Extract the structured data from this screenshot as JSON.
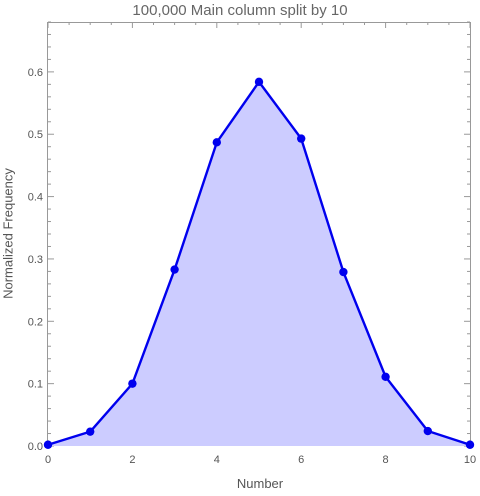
{
  "chart_data": {
    "type": "area",
    "title": "100,000 Main column split by 10",
    "xlabel": "Number",
    "ylabel": "Normalized Frequency",
    "xlim": [
      0,
      10
    ],
    "ylim": [
      0,
      0.68
    ],
    "x_ticks": [
      "0",
      "2",
      "4",
      "6",
      "8",
      "10"
    ],
    "y_ticks": [
      "0.0",
      "0.1",
      "0.2",
      "0.3",
      "0.4",
      "0.5",
      "0.6"
    ],
    "grid": false,
    "series": [
      {
        "x": [
          0,
          1,
          2,
          3,
          4,
          5,
          6,
          7,
          8,
          9,
          10
        ],
        "values": [
          0.002,
          0.023,
          0.1,
          0.283,
          0.487,
          0.584,
          0.493,
          0.279,
          0.111,
          0.024,
          0.002
        ]
      }
    ],
    "colors": {
      "line": "#0000ee",
      "fill": "#ccccff",
      "frame": "#999999",
      "text": "#555555"
    }
  }
}
